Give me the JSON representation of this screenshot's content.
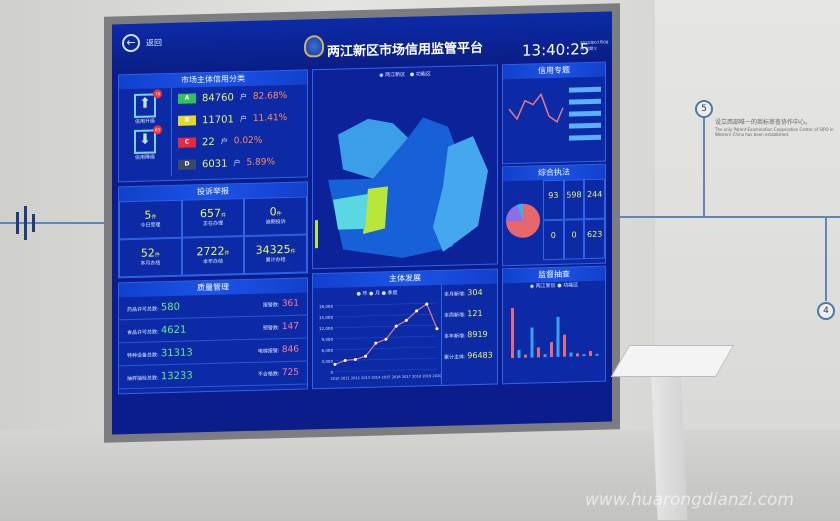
{
  "dashboard": {
    "back": "返回",
    "title": "两江新区市场信用监管平台",
    "time": "13:40:25",
    "date": "2020年07月08日 星期三"
  },
  "credit": {
    "title": "市场主体信用分类",
    "up_label": "信用升级",
    "up_count": "78",
    "down_label": "信用降级",
    "down_count": "63",
    "unit": "户",
    "rows": [
      {
        "grade": "A",
        "color": "#2fc35a",
        "count": "84760",
        "pct": "82.68%"
      },
      {
        "grade": "B",
        "color": "#e6d82a",
        "count": "11701",
        "pct": "11.41%"
      },
      {
        "grade": "C",
        "color": "#e8283c",
        "count": "22",
        "pct": "0.02%"
      },
      {
        "grade": "D",
        "color": "#3c4a66",
        "count": "6031",
        "pct": "5.89%"
      }
    ]
  },
  "complaints": {
    "title": "投诉举报",
    "unit": "件",
    "cells": [
      {
        "v": "5",
        "l": "今日受理"
      },
      {
        "v": "657",
        "l": "正在办理"
      },
      {
        "v": "0",
        "l": "逾期投诉"
      },
      {
        "v": "52",
        "l": "本月办结"
      },
      {
        "v": "2722",
        "l": "本年办结"
      },
      {
        "v": "34325",
        "l": "累计办结"
      }
    ]
  },
  "quality": {
    "title": "质量管理",
    "rows": [
      {
        "l": "药品许可总数:",
        "v": "580",
        "l2": "报警数:",
        "v2": "361"
      },
      {
        "l": "食品许可总数:",
        "v": "4621",
        "l2": "预警数:",
        "v2": "147"
      },
      {
        "l": "特种设备总数:",
        "v": "31313",
        "l2": "电梯报警:",
        "v2": "846"
      },
      {
        "l": "抽样抽检总数:",
        "v": "13233",
        "l2": "不合格数:",
        "v2": "725"
      }
    ]
  },
  "map": {
    "legend": [
      "两江新区",
      "功能区"
    ]
  },
  "development": {
    "title": "主体发展",
    "legend": [
      "年",
      "月",
      "季度"
    ],
    "stats": [
      {
        "l": "本月新增:",
        "v": "304"
      },
      {
        "l": "本周新增:",
        "v": "121"
      },
      {
        "l": "本年新增:",
        "v": "8919"
      },
      {
        "l": "累计主体:",
        "v": "96483"
      }
    ]
  },
  "chart_data": {
    "type": "line",
    "x": [
      "2010",
      "2011",
      "2012",
      "2013",
      "2014",
      "2015",
      "2016",
      "2017",
      "2018",
      "2019",
      "2020"
    ],
    "values": [
      2000,
      3000,
      3200,
      4000,
      7500,
      8500,
      12000,
      13500,
      16000,
      17800,
      11000
    ],
    "ylim": [
      0,
      18000
    ],
    "yticks": [
      "0",
      "3,000",
      "6,000",
      "9,000",
      "12,000",
      "15,000",
      "18,000"
    ],
    "color": "#e07a8a"
  },
  "right": {
    "topic_title": "信用专题",
    "enforce_title": "综合执法",
    "enforce": [
      {
        "v": "93"
      },
      {
        "v": "598"
      },
      {
        "v": "244"
      },
      {
        "v": "0"
      },
      {
        "v": "0"
      },
      {
        "v": "623"
      }
    ],
    "supervise_title": "监督抽查",
    "supervise_legend": [
      "两江新区",
      "功能区"
    ]
  },
  "wall": {
    "step5": "5",
    "step4": "4",
    "cn": "设立西部唯一的商标审查协作中心。",
    "en": "The only Patent Examination Cooperation Center of SIPO in Western China has been established.",
    "watermark": "www.huarongdianzi.com"
  }
}
